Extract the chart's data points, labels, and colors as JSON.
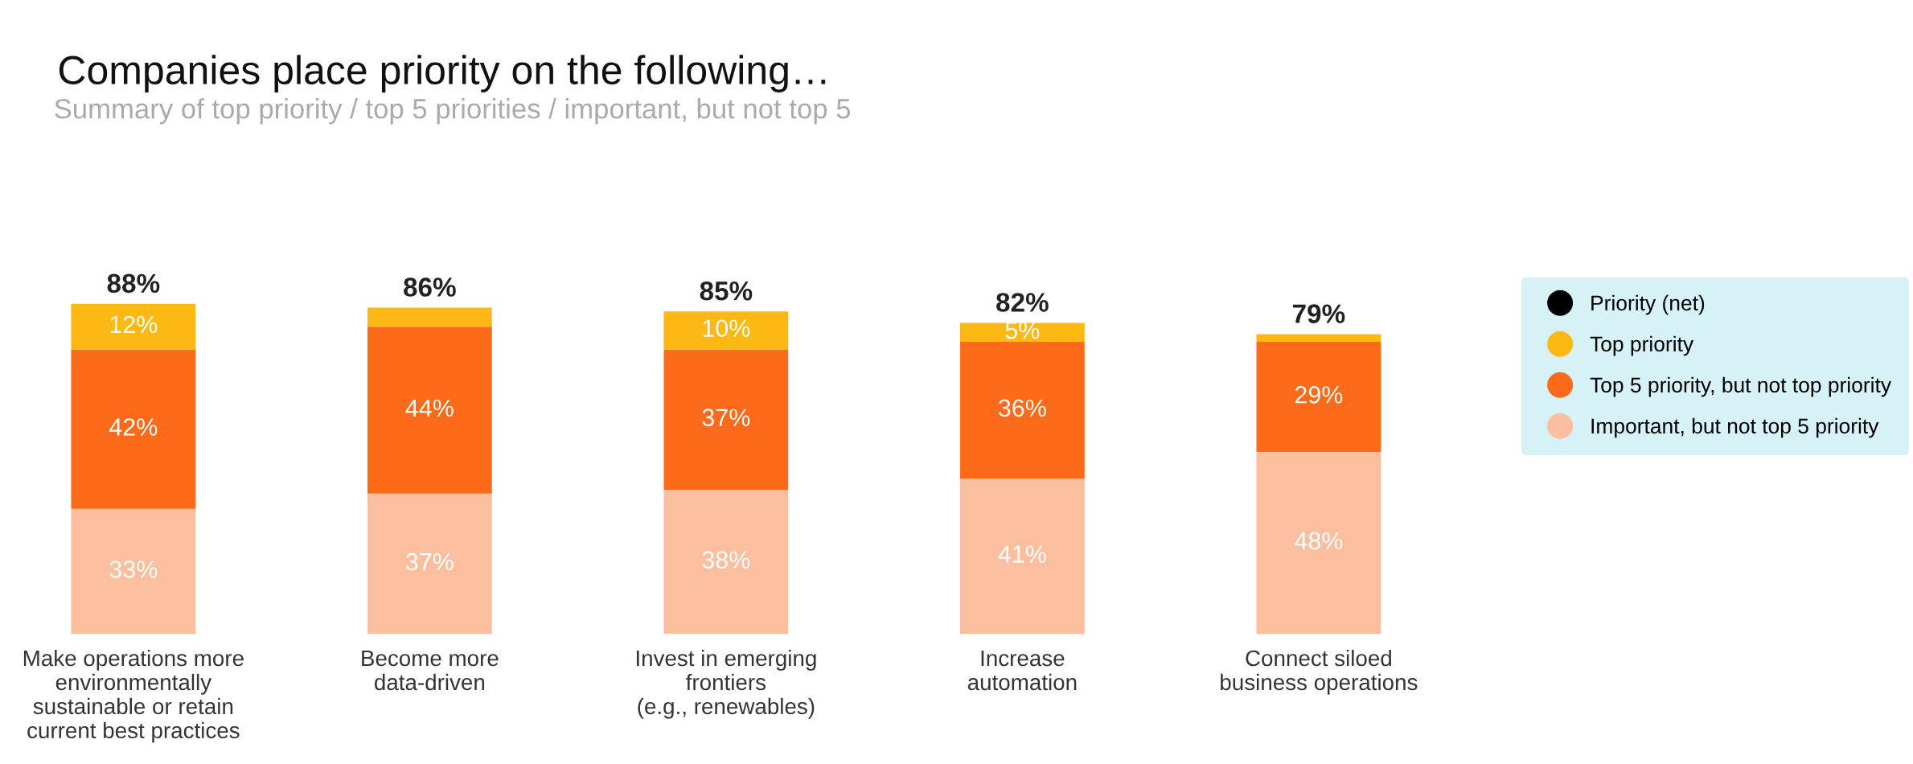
{
  "chart_data": {
    "type": "bar",
    "stacked": true,
    "title": "Companies place priority on the following…",
    "subtitle": "Summary of top priority / top 5 priorities / important, but not top 5",
    "categories": [
      "Make operations more\nenvironmentally\nsustainable or retain\ncurrent best practices",
      "Become more\ndata-driven",
      "Invest in emerging\nfrontiers\n(e.g., renewables)",
      "Increase\nautomation",
      "Connect siloed\nbusiness operations"
    ],
    "series": [
      {
        "name": "Important, but not top 5 priority",
        "color": "#fbbf9f",
        "values": [
          33,
          37,
          38,
          41,
          48
        ],
        "value_labels": [
          "33%",
          "37%",
          "38%",
          "41%",
          "48%"
        ]
      },
      {
        "name": "Top 5 priority, but not top priority",
        "color": "#fd6a1a",
        "values": [
          42,
          44,
          37,
          36,
          29
        ],
        "value_labels": [
          "42%",
          "44%",
          "37%",
          "36%",
          "29%"
        ]
      },
      {
        "name": "Top priority",
        "color": "#fdb813",
        "values": [
          12,
          5,
          10,
          5,
          2
        ],
        "value_labels": [
          "12%",
          null,
          "10%",
          "5%",
          null
        ]
      },
      {
        "name": "Priority (net)",
        "color": "#000000",
        "values": [
          null,
          null,
          null,
          null,
          null
        ]
      }
    ],
    "totals": [
      "88%",
      "86%",
      "85%",
      "82%",
      "79%"
    ],
    "legend": "right",
    "grid": false
  }
}
